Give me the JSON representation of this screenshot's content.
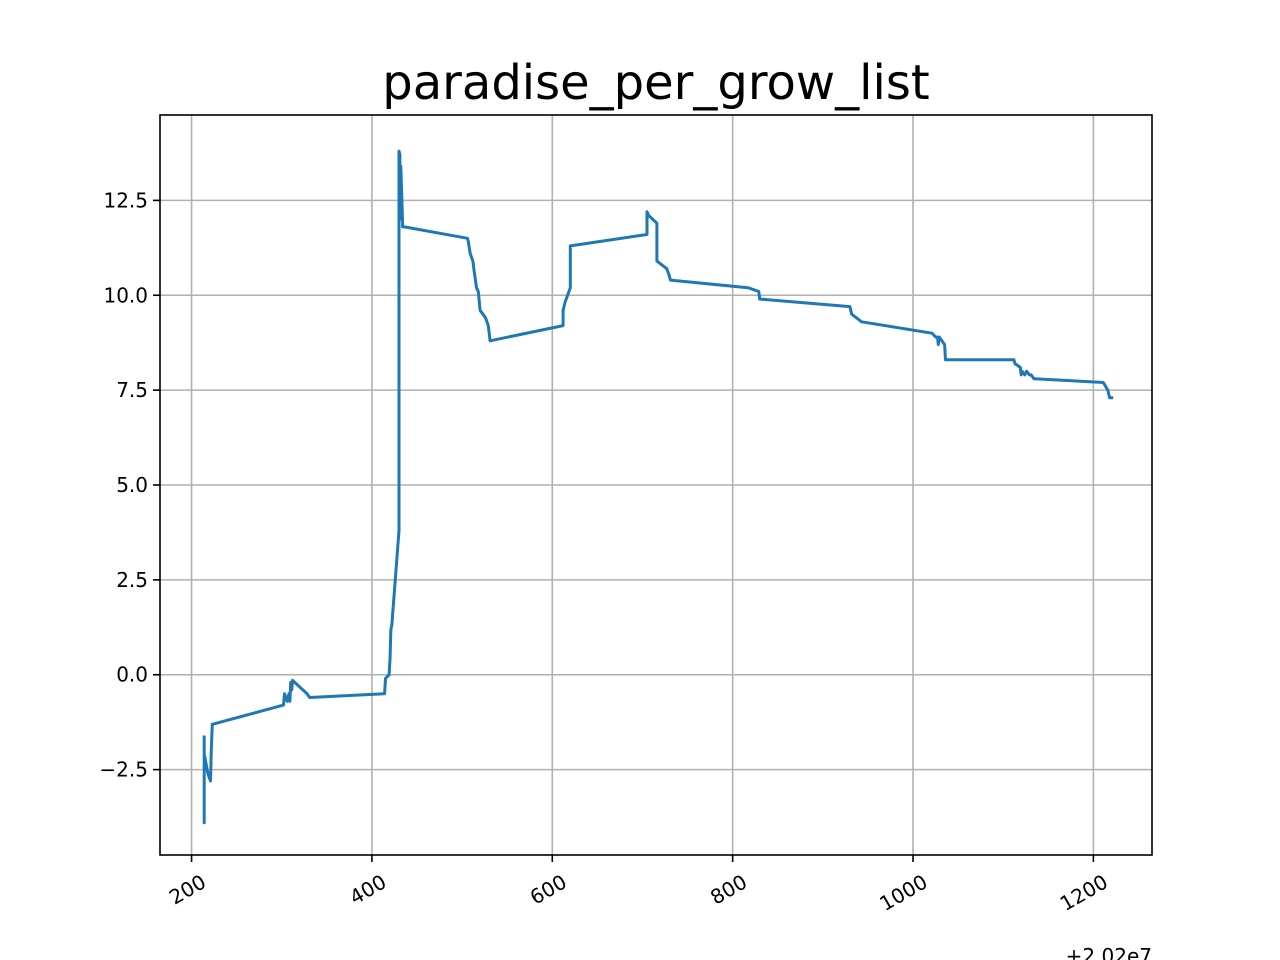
{
  "chart_data": {
    "type": "line",
    "title": "paradise_per_grow_list",
    "xlabel": "",
    "ylabel": "",
    "x_offset_label": "+2.02e7",
    "xlim": [
      165,
      1265
    ],
    "ylim": [
      -4.75,
      14.75
    ],
    "grid": true,
    "x_tick_rotation_deg": 30,
    "xticks": [
      {
        "value": 200,
        "label": "200"
      },
      {
        "value": 400,
        "label": "400"
      },
      {
        "value": 600,
        "label": "600"
      },
      {
        "value": 800,
        "label": "800"
      },
      {
        "value": 1000,
        "label": "1000"
      },
      {
        "value": 1200,
        "label": "1200"
      }
    ],
    "yticks": [
      {
        "value": -2.5,
        "label": "−2.5"
      },
      {
        "value": 0.0,
        "label": "0.0"
      },
      {
        "value": 2.5,
        "label": "2.5"
      },
      {
        "value": 5.0,
        "label": "5.0"
      },
      {
        "value": 7.5,
        "label": "7.5"
      },
      {
        "value": 10.0,
        "label": "10.0"
      },
      {
        "value": 12.5,
        "label": "12.5"
      }
    ],
    "series": [
      {
        "color": "#1f77b4",
        "x": [
          214,
          214,
          214,
          215,
          218,
          221,
          222,
          223,
          224,
          302,
          303,
          306,
          308,
          309,
          310,
          311,
          312,
          328,
          331,
          414,
          415,
          419,
          420,
          421,
          422,
          430,
          430,
          431,
          431,
          432,
          434,
          434,
          435,
          435,
          436,
          436,
          506,
          507,
          509,
          512,
          513,
          516,
          518,
          520,
          523,
          526,
          529,
          531,
          612,
          612,
          614,
          620,
          620,
          705,
          705,
          707,
          716,
          716,
          727,
          730,
          731,
          817,
          817,
          829,
          830,
          831,
          930,
          932,
          943,
          1021,
          1025,
          1026,
          1027,
          1028,
          1029,
          1032,
          1035,
          1036,
          1112,
          1113,
          1119,
          1120,
          1121,
          1124,
          1126,
          1129,
          1131,
          1134,
          1135,
          1211,
          1211,
          1216,
          1218,
          1222
        ],
        "y": [
          -1.6,
          -3.9,
          -2.1,
          -2.2,
          -2.6,
          -2.8,
          -1.9,
          -1.3,
          -1.3,
          -0.8,
          -0.5,
          -0.7,
          -0.5,
          -0.7,
          -0.2,
          -0.4,
          -0.15,
          -0.5,
          -0.6,
          -0.5,
          -0.1,
          0.0,
          0.4,
          1.2,
          1.3,
          3.8,
          13.8,
          13.7,
          12.0,
          13.4,
          11.9,
          11.8,
          11.8,
          11.8,
          11.8,
          11.8,
          11.5,
          11.4,
          11.1,
          10.9,
          10.7,
          10.2,
          10.1,
          9.6,
          9.5,
          9.4,
          9.2,
          8.8,
          9.2,
          9.6,
          9.8,
          10.2,
          11.3,
          11.6,
          12.2,
          12.1,
          11.9,
          10.9,
          10.7,
          10.5,
          10.4,
          10.2,
          10.2,
          10.1,
          9.9,
          9.9,
          9.7,
          9.5,
          9.3,
          9.0,
          8.9,
          8.9,
          8.9,
          8.7,
          8.9,
          8.8,
          8.7,
          8.3,
          8.3,
          8.2,
          8.1,
          7.9,
          8.0,
          7.9,
          8.0,
          7.9,
          7.9,
          7.8,
          7.8,
          7.7,
          7.7,
          7.5,
          7.3,
          7.3
        ]
      }
    ]
  }
}
